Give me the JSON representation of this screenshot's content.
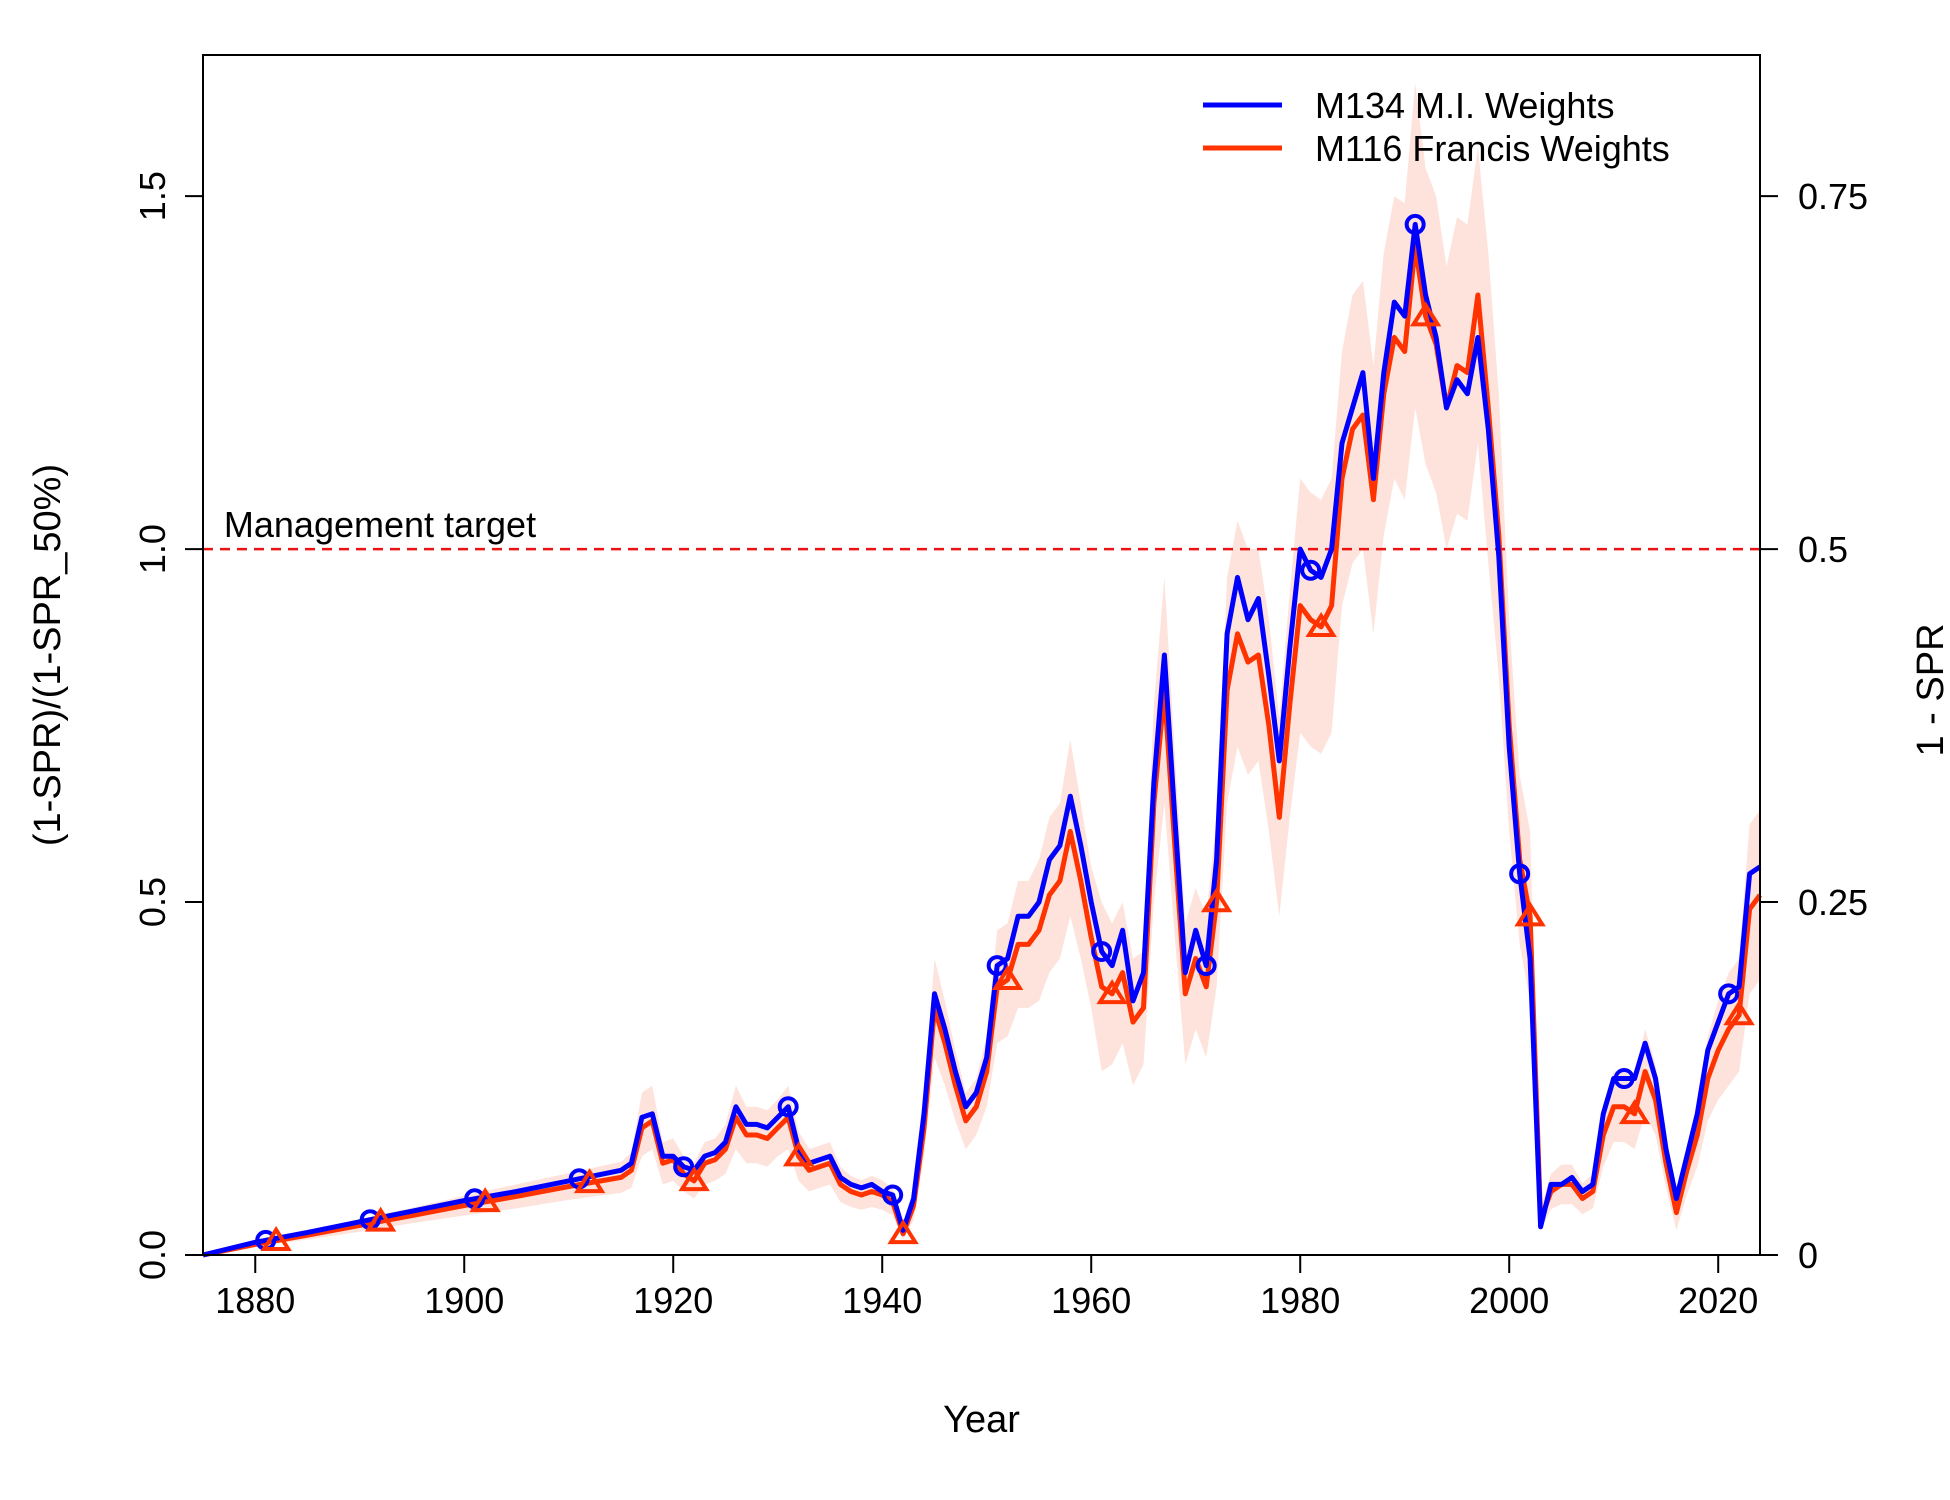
{
  "chart_data": {
    "type": "line",
    "xlabel": "Year",
    "ylabel": "(1-SPR)/(1-SPR_50%)",
    "ylabel_right": "1 - SPR",
    "xlim": [
      1875,
      2024
    ],
    "ylim": [
      0,
      1.7
    ],
    "x_ticks": [
      1880,
      1900,
      1920,
      1940,
      1960,
      1980,
      2000,
      2020
    ],
    "y_ticks": [
      0.0,
      0.5,
      1.0,
      1.5
    ],
    "y_tick_labels": [
      "0.0",
      "0.5",
      "1.0",
      "1.5"
    ],
    "y_right_ticks": [
      0,
      0.25,
      0.5,
      0.75
    ],
    "y_right_tick_labels": [
      "0",
      "0.25",
      "0.5",
      "0.75"
    ],
    "reference_line": {
      "y": 1.0,
      "label": "Management target",
      "color": "#ee1111"
    },
    "legend_position": "top-right",
    "series": [
      {
        "name": "M134 M.I. Weights",
        "color": "#0000ff",
        "marker": "circle",
        "marker_years": [
          1881,
          1891,
          1901,
          1911,
          1921,
          1931,
          1941,
          1951,
          1961,
          1971,
          1981,
          1991,
          2001,
          2011,
          2021
        ],
        "x": [
          1875,
          1880,
          1885,
          1890,
          1895,
          1900,
          1905,
          1910,
          1915,
          1916,
          1917,
          1918,
          1919,
          1920,
          1921,
          1922,
          1923,
          1924,
          1925,
          1926,
          1927,
          1928,
          1929,
          1930,
          1931,
          1932,
          1933,
          1934,
          1935,
          1936,
          1937,
          1938,
          1939,
          1940,
          1941,
          1942,
          1943,
          1944,
          1945,
          1946,
          1947,
          1948,
          1949,
          1950,
          1951,
          1952,
          1953,
          1954,
          1955,
          1956,
          1957,
          1958,
          1959,
          1960,
          1961,
          1962,
          1963,
          1964,
          1965,
          1966,
          1967,
          1968,
          1969,
          1970,
          1971,
          1972,
          1973,
          1974,
          1975,
          1976,
          1977,
          1978,
          1979,
          1980,
          1981,
          1982,
          1983,
          1984,
          1985,
          1986,
          1987,
          1988,
          1989,
          1990,
          1991,
          1992,
          1993,
          1994,
          1995,
          1996,
          1997,
          1998,
          1999,
          2000,
          2001,
          2002,
          2003,
          2004,
          2005,
          2006,
          2007,
          2008,
          2009,
          2010,
          2011,
          2012,
          2013,
          2014,
          2015,
          2016,
          2017,
          2018,
          2019,
          2020,
          2021,
          2022,
          2023,
          2024
        ],
        "values": [
          0.0,
          0.018,
          0.032,
          0.047,
          0.062,
          0.077,
          0.09,
          0.105,
          0.12,
          0.13,
          0.195,
          0.2,
          0.14,
          0.14,
          0.125,
          0.12,
          0.14,
          0.145,
          0.16,
          0.21,
          0.185,
          0.185,
          0.18,
          0.195,
          0.21,
          0.15,
          0.13,
          0.135,
          0.14,
          0.11,
          0.1,
          0.095,
          0.1,
          0.09,
          0.085,
          0.035,
          0.08,
          0.2,
          0.37,
          0.32,
          0.26,
          0.21,
          0.23,
          0.28,
          0.41,
          0.42,
          0.48,
          0.48,
          0.5,
          0.56,
          0.58,
          0.65,
          0.58,
          0.5,
          0.43,
          0.41,
          0.46,
          0.36,
          0.4,
          0.67,
          0.85,
          0.62,
          0.4,
          0.46,
          0.41,
          0.56,
          0.88,
          0.96,
          0.9,
          0.93,
          0.82,
          0.7,
          0.86,
          1.0,
          0.97,
          0.96,
          1.0,
          1.15,
          1.2,
          1.25,
          1.1,
          1.25,
          1.35,
          1.33,
          1.46,
          1.36,
          1.3,
          1.2,
          1.24,
          1.22,
          1.3,
          1.17,
          0.99,
          0.72,
          0.54,
          0.42,
          0.04,
          0.1,
          0.1,
          0.11,
          0.09,
          0.1,
          0.2,
          0.25,
          0.25,
          0.25,
          0.3,
          0.25,
          0.15,
          0.08,
          0.14,
          0.2,
          0.29,
          0.33,
          0.37,
          0.38,
          0.54,
          0.55
        ]
      },
      {
        "name": "M116 Francis Weights",
        "color": "#ff3300",
        "marker": "triangle",
        "marker_years": [
          1882,
          1892,
          1902,
          1912,
          1922,
          1932,
          1942,
          1952,
          1962,
          1972,
          1982,
          1992,
          2002,
          2012,
          2022
        ],
        "x": [
          1875,
          1880,
          1885,
          1890,
          1895,
          1900,
          1905,
          1910,
          1915,
          1916,
          1917,
          1918,
          1919,
          1920,
          1921,
          1922,
          1923,
          1924,
          1925,
          1926,
          1927,
          1928,
          1929,
          1930,
          1931,
          1932,
          1933,
          1934,
          1935,
          1936,
          1937,
          1938,
          1939,
          1940,
          1941,
          1942,
          1943,
          1944,
          1945,
          1946,
          1947,
          1948,
          1949,
          1950,
          1951,
          1952,
          1953,
          1954,
          1955,
          1956,
          1957,
          1958,
          1959,
          1960,
          1961,
          1962,
          1963,
          1964,
          1965,
          1966,
          1967,
          1968,
          1969,
          1970,
          1971,
          1972,
          1973,
          1974,
          1975,
          1976,
          1977,
          1978,
          1979,
          1980,
          1981,
          1982,
          1983,
          1984,
          1985,
          1986,
          1987,
          1988,
          1989,
          1990,
          1991,
          1992,
          1993,
          1994,
          1995,
          1996,
          1997,
          1998,
          1999,
          2000,
          2001,
          2002,
          2003,
          2004,
          2005,
          2006,
          2007,
          2008,
          2009,
          2010,
          2011,
          2012,
          2013,
          2014,
          2015,
          2016,
          2017,
          2018,
          2019,
          2020,
          2021,
          2022,
          2023,
          2024
        ],
        "values": [
          0.0,
          0.015,
          0.028,
          0.042,
          0.056,
          0.07,
          0.083,
          0.097,
          0.11,
          0.12,
          0.18,
          0.19,
          0.13,
          0.135,
          0.115,
          0.105,
          0.13,
          0.135,
          0.15,
          0.195,
          0.17,
          0.17,
          0.165,
          0.18,
          0.195,
          0.14,
          0.12,
          0.125,
          0.13,
          0.1,
          0.09,
          0.085,
          0.09,
          0.085,
          0.075,
          0.03,
          0.07,
          0.18,
          0.35,
          0.3,
          0.24,
          0.19,
          0.21,
          0.26,
          0.38,
          0.39,
          0.44,
          0.44,
          0.46,
          0.51,
          0.53,
          0.6,
          0.53,
          0.45,
          0.38,
          0.37,
          0.4,
          0.33,
          0.35,
          0.64,
          0.8,
          0.58,
          0.37,
          0.42,
          0.38,
          0.5,
          0.8,
          0.88,
          0.84,
          0.85,
          0.75,
          0.62,
          0.78,
          0.92,
          0.9,
          0.89,
          0.92,
          1.1,
          1.17,
          1.19,
          1.07,
          1.22,
          1.3,
          1.28,
          1.43,
          1.33,
          1.29,
          1.2,
          1.26,
          1.25,
          1.36,
          1.2,
          1.02,
          0.75,
          0.56,
          0.48,
          0.05,
          0.09,
          0.1,
          0.1,
          0.08,
          0.09,
          0.17,
          0.21,
          0.21,
          0.2,
          0.26,
          0.22,
          0.13,
          0.06,
          0.12,
          0.17,
          0.25,
          0.29,
          0.32,
          0.34,
          0.49,
          0.51
        ]
      }
    ],
    "band": {
      "series": "M116 Francis Weights",
      "color": "#fde3dc",
      "x": [
        1875,
        1880,
        1885,
        1890,
        1895,
        1900,
        1905,
        1910,
        1915,
        1916,
        1917,
        1918,
        1919,
        1920,
        1921,
        1922,
        1923,
        1924,
        1925,
        1926,
        1927,
        1928,
        1929,
        1930,
        1931,
        1932,
        1933,
        1934,
        1935,
        1936,
        1937,
        1938,
        1939,
        1940,
        1941,
        1942,
        1943,
        1944,
        1945,
        1946,
        1947,
        1948,
        1949,
        1950,
        1951,
        1952,
        1953,
        1954,
        1955,
        1956,
        1957,
        1958,
        1959,
        1960,
        1961,
        1962,
        1963,
        1964,
        1965,
        1966,
        1967,
        1968,
        1969,
        1970,
        1971,
        1972,
        1973,
        1974,
        1975,
        1976,
        1977,
        1978,
        1979,
        1980,
        1981,
        1982,
        1983,
        1984,
        1985,
        1986,
        1987,
        1988,
        1989,
        1990,
        1991,
        1992,
        1993,
        1994,
        1995,
        1996,
        1997,
        1998,
        1999,
        2000,
        2001,
        2002,
        2003,
        2004,
        2005,
        2006,
        2007,
        2008,
        2009,
        2010,
        2011,
        2012,
        2013,
        2014,
        2015,
        2016,
        2017,
        2018,
        2019,
        2020,
        2021,
        2022,
        2023,
        2024
      ],
      "lower": [
        0.0,
        0.012,
        0.022,
        0.033,
        0.045,
        0.056,
        0.066,
        0.078,
        0.088,
        0.095,
        0.14,
        0.15,
        0.1,
        0.105,
        0.09,
        0.08,
        0.1,
        0.105,
        0.115,
        0.15,
        0.13,
        0.13,
        0.125,
        0.14,
        0.15,
        0.105,
        0.09,
        0.095,
        0.1,
        0.075,
        0.068,
        0.064,
        0.068,
        0.064,
        0.056,
        0.022,
        0.05,
        0.14,
        0.28,
        0.24,
        0.19,
        0.15,
        0.17,
        0.21,
        0.3,
        0.31,
        0.35,
        0.35,
        0.36,
        0.4,
        0.42,
        0.48,
        0.42,
        0.35,
        0.26,
        0.27,
        0.3,
        0.24,
        0.27,
        0.5,
        0.64,
        0.45,
        0.27,
        0.32,
        0.28,
        0.38,
        0.64,
        0.72,
        0.68,
        0.7,
        0.6,
        0.48,
        0.62,
        0.74,
        0.72,
        0.71,
        0.74,
        0.92,
        0.98,
        1.0,
        0.88,
        1.02,
        1.1,
        1.07,
        1.2,
        1.12,
        1.08,
        1.0,
        1.05,
        1.04,
        1.15,
        0.98,
        0.82,
        0.6,
        0.44,
        0.36,
        0.035,
        0.065,
        0.072,
        0.072,
        0.058,
        0.066,
        0.125,
        0.16,
        0.16,
        0.15,
        0.2,
        0.17,
        0.095,
        0.035,
        0.085,
        0.125,
        0.19,
        0.22,
        0.24,
        0.26,
        0.37,
        0.39
      ],
      "upper": [
        0.0,
        0.018,
        0.034,
        0.051,
        0.067,
        0.084,
        0.1,
        0.116,
        0.132,
        0.145,
        0.23,
        0.24,
        0.16,
        0.165,
        0.14,
        0.13,
        0.16,
        0.165,
        0.185,
        0.24,
        0.21,
        0.21,
        0.205,
        0.22,
        0.24,
        0.175,
        0.15,
        0.155,
        0.16,
        0.125,
        0.112,
        0.106,
        0.112,
        0.106,
        0.094,
        0.04,
        0.09,
        0.22,
        0.42,
        0.36,
        0.29,
        0.23,
        0.25,
        0.31,
        0.46,
        0.47,
        0.53,
        0.53,
        0.56,
        0.62,
        0.64,
        0.73,
        0.64,
        0.55,
        0.5,
        0.47,
        0.5,
        0.42,
        0.43,
        0.78,
        0.96,
        0.71,
        0.47,
        0.52,
        0.48,
        0.62,
        0.96,
        1.04,
        1.0,
        1.0,
        0.9,
        0.76,
        0.94,
        1.1,
        1.08,
        1.07,
        1.1,
        1.28,
        1.36,
        1.38,
        1.26,
        1.42,
        1.5,
        1.49,
        1.66,
        1.54,
        1.5,
        1.4,
        1.47,
        1.46,
        1.57,
        1.42,
        1.22,
        0.9,
        0.68,
        0.6,
        0.065,
        0.115,
        0.128,
        0.128,
        0.102,
        0.114,
        0.215,
        0.26,
        0.26,
        0.25,
        0.32,
        0.27,
        0.165,
        0.085,
        0.155,
        0.215,
        0.31,
        0.36,
        0.4,
        0.42,
        0.61,
        0.63
      ]
    }
  }
}
